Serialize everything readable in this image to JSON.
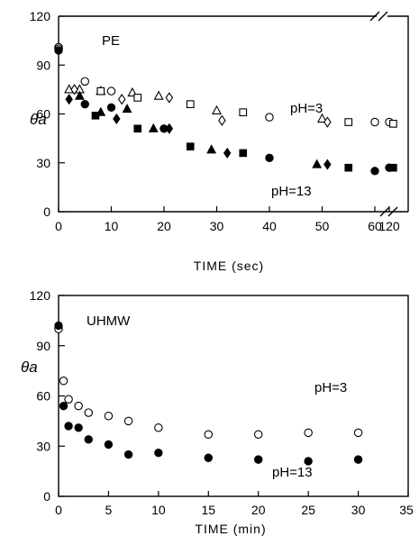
{
  "chart_data": [
    {
      "type": "scatter",
      "panel_label": "PE",
      "ylabel": "θa",
      "xlabel": "TIME (sec)",
      "ylim": [
        0,
        120
      ],
      "yticks": [
        0,
        30,
        60,
        90,
        120
      ],
      "xticks": [
        "0",
        "10",
        "20",
        "30",
        "40",
        "50",
        "60",
        "120"
      ],
      "axis_break": "between 60 and 120",
      "annotations": [
        "pH=3",
        "pH=13"
      ],
      "series": [
        {
          "marker": "open-circle",
          "points": [
            [
              0,
              101
            ],
            [
              0,
              100
            ],
            [
              5,
              80
            ],
            [
              10,
              74
            ],
            [
              40,
              58
            ],
            [
              60,
              55
            ],
            [
              120,
              55
            ]
          ]
        },
        {
          "marker": "open-triangle",
          "points": [
            [
              2,
              75
            ],
            [
              4,
              75
            ],
            [
              8,
              74
            ],
            [
              14,
              73
            ],
            [
              19,
              71
            ],
            [
              30,
              62
            ],
            [
              50,
              57
            ]
          ]
        },
        {
          "marker": "open-square",
          "points": [
            [
              8,
              74
            ],
            [
              15,
              70
            ],
            [
              25,
              66
            ],
            [
              35,
              61
            ],
            [
              55,
              55
            ],
            [
              122,
              54
            ]
          ]
        },
        {
          "marker": "open-diamond",
          "points": [
            [
              3,
              75
            ],
            [
              12,
              69
            ],
            [
              21,
              70
            ],
            [
              31,
              56
            ],
            [
              51,
              55
            ]
          ]
        },
        {
          "marker": "filled-circle",
          "points": [
            [
              0,
              99
            ],
            [
              5,
              66
            ],
            [
              10,
              64
            ],
            [
              20,
              51
            ],
            [
              40,
              33
            ],
            [
              60,
              25
            ],
            [
              120,
              27
            ]
          ]
        },
        {
          "marker": "filled-triangle",
          "points": [
            [
              4,
              71
            ],
            [
              8,
              61
            ],
            [
              13,
              63
            ],
            [
              18,
              51
            ],
            [
              29,
              38
            ],
            [
              49,
              29
            ]
          ]
        },
        {
          "marker": "filled-square",
          "points": [
            [
              7,
              59
            ],
            [
              15,
              51
            ],
            [
              25,
              40
            ],
            [
              35,
              36
            ],
            [
              55,
              27
            ],
            [
              122,
              27
            ]
          ]
        },
        {
          "marker": "filled-diamond",
          "points": [
            [
              2,
              69
            ],
            [
              11,
              57
            ],
            [
              21,
              51
            ],
            [
              32,
              36
            ],
            [
              51,
              29
            ]
          ]
        }
      ]
    },
    {
      "type": "scatter",
      "panel_label": "UHMW",
      "ylabel": "θa",
      "xlabel": "TIME (min)",
      "ylim": [
        0,
        120
      ],
      "xlim": [
        0,
        35
      ],
      "yticks": [
        0,
        30,
        60,
        90,
        120
      ],
      "xticks": [
        0,
        5,
        10,
        15,
        20,
        25,
        30,
        35
      ],
      "annotations": [
        "pH=3",
        "pH=13"
      ],
      "series": [
        {
          "marker": "open-circle",
          "points": [
            [
              0,
              100
            ],
            [
              0.5,
              69
            ],
            [
              1,
              58
            ],
            [
              2,
              54
            ],
            [
              3,
              50
            ],
            [
              5,
              48
            ],
            [
              7,
              45
            ],
            [
              10,
              41
            ],
            [
              15,
              37
            ],
            [
              20,
              37
            ],
            [
              25,
              38
            ],
            [
              30,
              38
            ]
          ]
        },
        {
          "marker": "filled-circle",
          "points": [
            [
              0,
              102
            ],
            [
              0.5,
              54
            ],
            [
              1,
              42
            ],
            [
              2,
              41
            ],
            [
              3,
              34
            ],
            [
              5,
              31
            ],
            [
              7,
              25
            ],
            [
              10,
              26
            ],
            [
              15,
              23
            ],
            [
              20,
              22
            ],
            [
              25,
              21
            ],
            [
              30,
              22
            ]
          ]
        }
      ]
    }
  ]
}
